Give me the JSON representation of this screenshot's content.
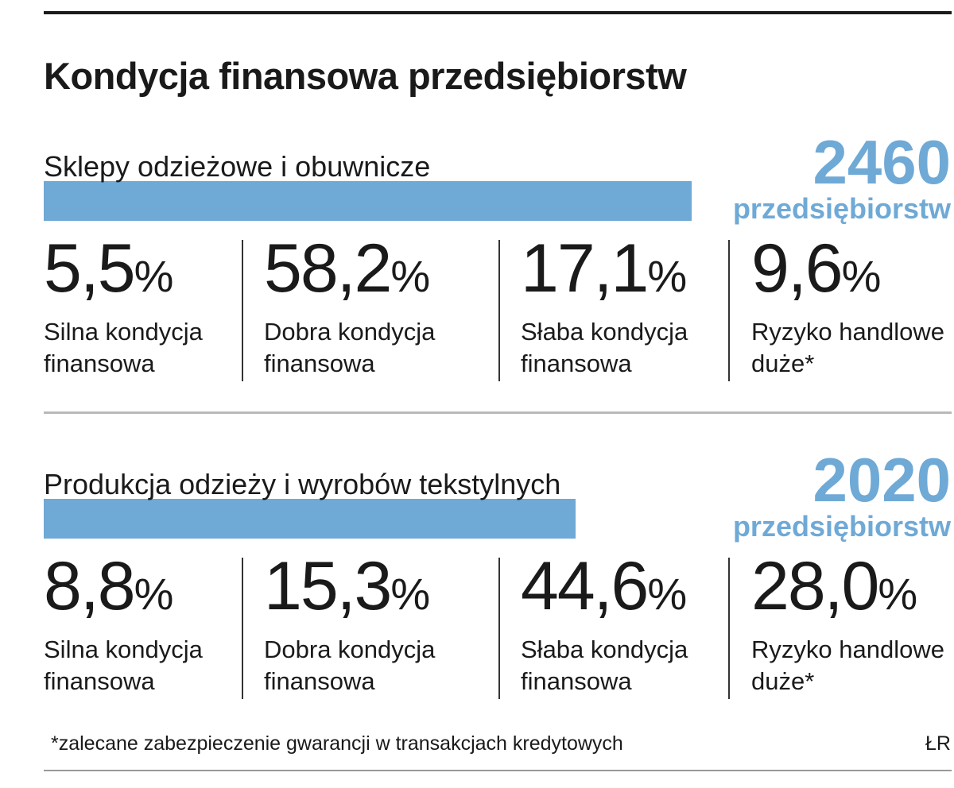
{
  "title": "Kondycja finansowa przedsiębiorstw",
  "chart_data": [
    {
      "type": "bar",
      "category": "Sklepy odzieżowe i obuwnicze",
      "companies": 2460,
      "companies_label": "2460",
      "unit": "przedsiębiorstw",
      "stats": [
        {
          "value": 5.5,
          "text": "5,5",
          "label": "Silna kondycja finansowa"
        },
        {
          "value": 58.2,
          "text": "58,2",
          "label": "Dobra kondycja finansowa"
        },
        {
          "value": 17.1,
          "text": "17,1",
          "label": "Słaba kondycja finansowa"
        },
        {
          "value": 9.6,
          "text": "9,6",
          "label": "Ryzyko handlowe duże*"
        }
      ]
    },
    {
      "type": "bar",
      "category": "Produkcja odzieży i wyrobów tekstylnych",
      "companies": 2020,
      "companies_label": "2020",
      "unit": "przedsiębiorstw",
      "stats": [
        {
          "value": 8.8,
          "text": "8,8",
          "label": "Silna kondycja finansowa"
        },
        {
          "value": 15.3,
          "text": "15,3",
          "label": "Dobra kondycja finansowa"
        },
        {
          "value": 44.6,
          "text": "44,6",
          "label": "Słaba kondycja finansowa"
        },
        {
          "value": 28.0,
          "text": "28,0",
          "label": "Ryzyko handlowe duże*"
        }
      ]
    }
  ],
  "percent_sign": "%",
  "bar_color": "#6fa9d6",
  "footnote": "*zalecane zabezpieczenie gwarancji w transakcjach kredytowych",
  "credit": "ŁR"
}
